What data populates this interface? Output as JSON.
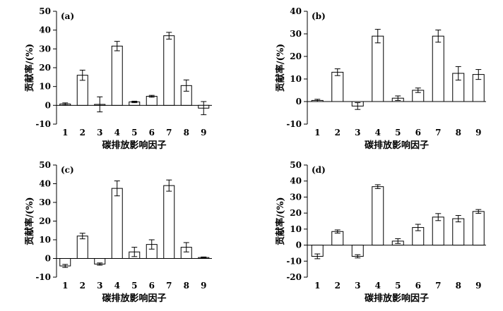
{
  "chart_data": [
    {
      "type": "bar",
      "panel_label": "(a)",
      "categories": [
        "1",
        "2",
        "3",
        "4",
        "5",
        "6",
        "7",
        "8",
        "9"
      ],
      "values": [
        0.7,
        16.0,
        0.5,
        31.5,
        1.8,
        4.8,
        37.0,
        10.5,
        -1.5
      ],
      "errors": [
        0.6,
        2.7,
        4.0,
        2.5,
        0.4,
        0.5,
        1.8,
        3.0,
        3.5
      ],
      "ylim": [
        -10,
        50
      ],
      "yticks": [
        -10,
        0,
        10,
        20,
        30,
        40,
        50
      ],
      "xlabel": "碳排放影响因子",
      "ylabel": "贡献率/(%)"
    },
    {
      "type": "bar",
      "panel_label": "(b)",
      "categories": [
        "1",
        "2",
        "3",
        "4",
        "5",
        "6",
        "7",
        "8",
        "9"
      ],
      "values": [
        0.5,
        13.0,
        -2.0,
        29.0,
        1.5,
        5.0,
        29.0,
        12.5,
        12.0
      ],
      "errors": [
        0.5,
        1.5,
        1.5,
        3.0,
        1.0,
        1.0,
        2.7,
        3.0,
        2.2
      ],
      "ylim": [
        -10,
        40
      ],
      "yticks": [
        -10,
        0,
        10,
        20,
        30,
        40
      ],
      "xlabel": "碳排放影响因子",
      "ylabel": "贡献率/(%)"
    },
    {
      "type": "bar",
      "panel_label": "(c)",
      "categories": [
        "1",
        "2",
        "3",
        "4",
        "5",
        "6",
        "7",
        "8",
        "9"
      ],
      "values": [
        -4.0,
        12.0,
        -3.0,
        37.5,
        3.5,
        7.5,
        39.0,
        6.0,
        0.5
      ],
      "errors": [
        0.8,
        1.5,
        0.6,
        4.0,
        2.5,
        2.5,
        3.0,
        2.5,
        0.3
      ],
      "ylim": [
        -10,
        50
      ],
      "yticks": [
        -10,
        0,
        10,
        20,
        30,
        40,
        50
      ],
      "xlabel": "碳排放影响因子",
      "ylabel": "贡献率/(%)"
    },
    {
      "type": "bar",
      "panel_label": "(d)",
      "categories": [
        "1",
        "2",
        "3",
        "4",
        "5",
        "6",
        "7",
        "8",
        "9"
      ],
      "values": [
        -7.0,
        8.5,
        -7.0,
        36.5,
        2.5,
        11.0,
        17.5,
        16.5,
        21.0
      ],
      "errors": [
        1.5,
        1.0,
        1.0,
        1.2,
        1.5,
        2.0,
        2.2,
        2.0,
        1.2
      ],
      "ylim": [
        -20,
        50
      ],
      "yticks": [
        -20,
        -10,
        0,
        10,
        20,
        30,
        40,
        50
      ],
      "xlabel": "碳排放影响因子",
      "ylabel": "贡献率/(%)"
    }
  ]
}
